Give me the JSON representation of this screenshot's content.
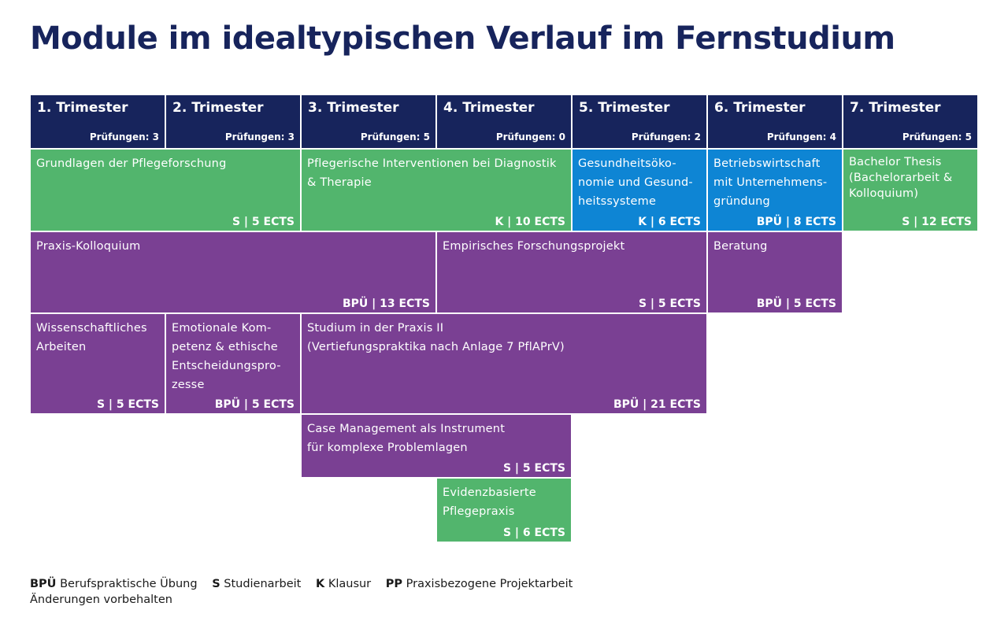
{
  "title": "Module im idealtypischen Verlauf im Fernstudium",
  "trimesters": [
    {
      "label": "1. Trimester",
      "exams": "Prüfungen: 3"
    },
    {
      "label": "2. Trimester",
      "exams": "Prüfungen: 3"
    },
    {
      "label": "3. Trimester",
      "exams": "Prüfungen: 5"
    },
    {
      "label": "4. Trimester",
      "exams": "Prüfungen: 0"
    },
    {
      "label": "5. Trimester",
      "exams": "Prüfungen: 2"
    },
    {
      "label": "6. Trimester",
      "exams": "Prüfungen: 4"
    },
    {
      "label": "7. Trimester",
      "exams": "Prüfungen: 5"
    }
  ],
  "modules": [
    {
      "name": "Grundlagen der Pflegeforschung",
      "ects": "S | 5 ECTS",
      "color": "green"
    },
    {
      "name": "Pflegerische Interventionen bei Diagnostik\n& Therapie",
      "ects": "K | 10 ECTS",
      "color": "green"
    },
    {
      "name": "Gesundheitsöko-\nnomie und Gesund-\nheitssysteme",
      "ects": "K | 6 ECTS",
      "color": "blue"
    },
    {
      "name": "Betriebswirtschaft\nmit Unternehmens-\ngründung",
      "ects": "BPÜ | 8 ECTS",
      "color": "blue"
    },
    {
      "name": "Bachelor Thesis\n(Bachelorarbeit &\nKolloquium)",
      "ects": "S | 12 ECTS",
      "color": "green"
    },
    {
      "name": "Praxis-Kolloquium",
      "ects": "BPÜ | 13 ECTS",
      "color": "purple"
    },
    {
      "name": "Empirisches Forschungsprojekt",
      "ects": "S | 5 ECTS",
      "color": "purple"
    },
    {
      "name": "Beratung",
      "ects": "BPÜ | 5 ECTS",
      "color": "purple"
    },
    {
      "name": "Wissenschaftliches\nArbeiten",
      "ects": "S | 5 ECTS",
      "color": "purple"
    },
    {
      "name": "Emotionale Kom-\npetenz & ethische\nEntscheidungspro-\nzesse",
      "ects": "BPÜ | 5 ECTS",
      "color": "purple"
    },
    {
      "name": "Studium in der Praxis II\n(Vertiefungspraktika nach Anlage 7 PflAPrV)",
      "ects": "BPÜ | 21 ECTS",
      "color": "purple"
    },
    {
      "name": "Case Management als Instrument\nfür komplexe Problemlagen",
      "ects": "S | 5 ECTS",
      "color": "purple"
    },
    {
      "name": "Evidenzbasierte\nPflegepraxis",
      "ects": "S | 6 ECTS",
      "color": "green"
    }
  ],
  "colors": {
    "header": "#17245c",
    "green": "#52b56d",
    "blue": "#0e85d4",
    "purple": "#7a4093"
  },
  "legend": {
    "items": [
      {
        "abbr": "BPÜ",
        "text": "Berufspraktische Übung"
      },
      {
        "abbr": "S",
        "text": "Studienarbeit"
      },
      {
        "abbr": "K",
        "text": "Klausur"
      },
      {
        "abbr": "PP",
        "text": "Praxisbezogene Projektarbeit"
      }
    ],
    "note": "Änderungen vorbehalten"
  }
}
